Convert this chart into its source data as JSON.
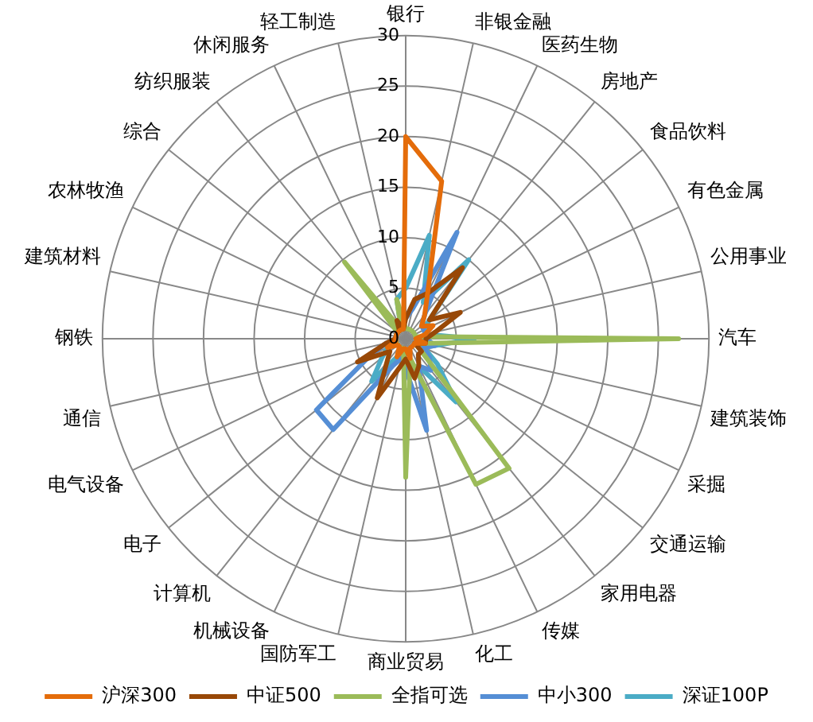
{
  "chart_data": {
    "type": "radar",
    "categories": [
      "银行",
      "非银金融",
      "医药生物",
      "房地产",
      "食品饮料",
      "有色金属",
      "公用事业",
      "汽车",
      "建筑装饰",
      "采掘",
      "交通运输",
      "家用电器",
      "传媒",
      "化工",
      "商业贸易",
      "国防军工",
      "机械设备",
      "计算机",
      "电子",
      "电气设备",
      "通信",
      "钢铁",
      "建筑材料",
      "农林牧渔",
      "综合",
      "纺织服装",
      "休闲服务",
      "轻工制造"
    ],
    "series": [
      {
        "name": "沪深300",
        "color": "#e46c0a",
        "values": [
          20,
          16,
          5,
          3,
          2,
          3,
          2,
          1,
          2,
          1,
          1,
          1,
          1,
          2,
          1,
          1,
          2,
          1,
          1,
          2,
          1,
          1,
          1,
          1,
          1,
          1,
          1,
          1
        ]
      },
      {
        "name": "中证500",
        "color": "#984807",
        "values": [
          2,
          4,
          5,
          9,
          3,
          6,
          3,
          2,
          2,
          1,
          2,
          2,
          3,
          4,
          2,
          3,
          6.5,
          3,
          2,
          5.3,
          2,
          1,
          1,
          1,
          1,
          1,
          2,
          1
        ]
      },
      {
        "name": "全指可选",
        "color": "#9bbb59",
        "values": [
          1,
          1,
          1,
          1,
          1,
          1,
          1,
          27,
          2,
          1,
          2,
          16.4,
          16,
          2,
          13.7,
          1,
          1,
          1,
          1,
          1,
          1,
          1,
          1,
          1,
          1,
          9.7,
          1,
          4
        ]
      },
      {
        "name": "中小300",
        "color": "#558ed5",
        "values": [
          2,
          3,
          11.7,
          3,
          2,
          2,
          2,
          2,
          3,
          2,
          3,
          4,
          3,
          9.3,
          3,
          2,
          3,
          11.5,
          11.3,
          4,
          2,
          1,
          1,
          1,
          1,
          1,
          1,
          2
        ]
      },
      {
        "name": "深证100P",
        "color": "#4bacc6",
        "values": [
          5,
          10.5,
          4,
          10,
          3,
          2,
          2,
          6.8,
          3,
          2,
          4,
          8,
          3,
          3,
          2,
          2,
          2,
          5.4,
          3,
          2,
          1,
          1,
          1,
          1,
          1,
          1,
          1,
          4
        ]
      }
    ],
    "ylim": [
      0,
      30
    ],
    "yticks": [
      0,
      5,
      10,
      15,
      20,
      25,
      30
    ],
    "grid": true,
    "legend": "bottom",
    "marker": "none",
    "line_style": "solid"
  }
}
